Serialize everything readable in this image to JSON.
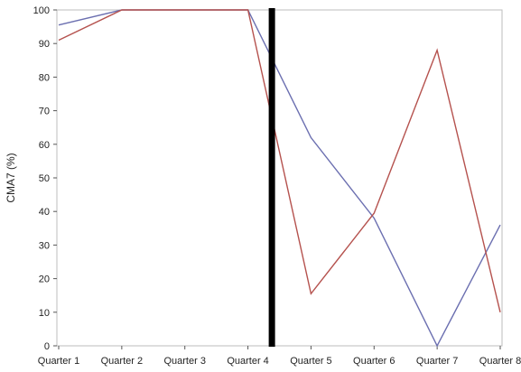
{
  "chart_data": {
    "type": "line",
    "title": "",
    "xlabel": "",
    "ylabel": "CMA7 (%)",
    "categories": [
      "Quarter 1",
      "Quarter 2",
      "Quarter 3",
      "Quarter 4",
      "Quarter 5",
      "Quarter 6",
      "Quarter 7",
      "Quarter 8"
    ],
    "ylim": [
      0,
      100
    ],
    "yticks": [
      0,
      10,
      20,
      30,
      40,
      50,
      60,
      70,
      80,
      90,
      100
    ],
    "grid": false,
    "legend": "none",
    "series": [
      {
        "color": "#6b6fb0",
        "values": [
          95.5,
          100,
          100,
          100,
          62,
          38,
          0,
          36
        ]
      },
      {
        "color": "#b5524e",
        "values": [
          91,
          100,
          100,
          100,
          15.5,
          39.5,
          88,
          10
        ]
      }
    ],
    "divider": {
      "position": "between Quarter 4 and Quarter 5",
      "color": "#000000"
    }
  }
}
